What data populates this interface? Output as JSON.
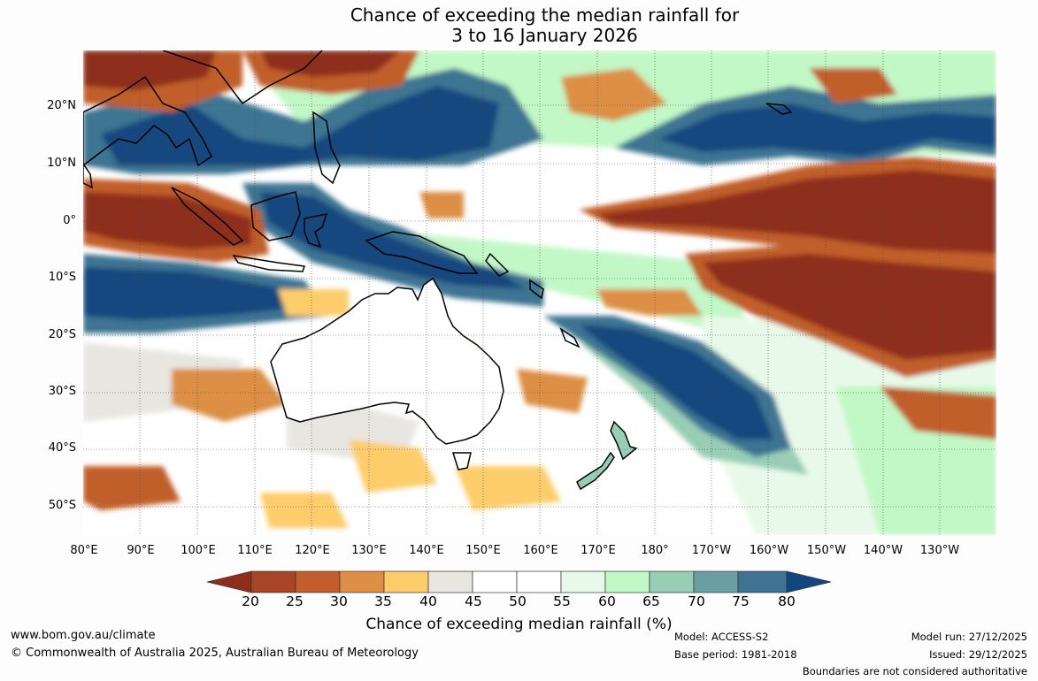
{
  "title": {
    "line1": "Chance of exceeding the median rainfall for",
    "line2": "3 to 16 January 2026"
  },
  "map": {
    "lat_labels": [
      "20°N",
      "10°N",
      "0°",
      "10°S",
      "20°S",
      "30°S",
      "40°S",
      "50°S"
    ],
    "lon_labels": [
      "80°E",
      "90°E",
      "100°E",
      "110°E",
      "120°E",
      "130°E",
      "140°E",
      "150°E",
      "160°E",
      "170°E",
      "180°",
      "170°W",
      "160°W",
      "150°W",
      "140°W",
      "130°W"
    ]
  },
  "colorbar": {
    "title": "Chance of exceeding median rainfall (%)",
    "labels": [
      "20",
      "25",
      "30",
      "35",
      "40",
      "45",
      "50",
      "55",
      "60",
      "65",
      "70",
      "75",
      "80"
    ],
    "colors": [
      "#8e2f1b",
      "#a84527",
      "#c15e2c",
      "#dc8f45",
      "#fccd6a",
      "#e8e6e1",
      "#ffffff",
      "#ffffff",
      "#e9f9e9",
      "#c2f8c6",
      "#98cdb6",
      "#6a9ea2",
      "#3e7492",
      "#12467e"
    ]
  },
  "footer": {
    "website": "www.bom.gov.au/climate",
    "copyright": "© Commonwealth of Australia 2025, Australian Bureau of Meteorology",
    "model": "Model: ACCESS-S2",
    "base_period": "Base period: 1981-2018",
    "model_run": "Model run: 27/12/2025",
    "issued": "Issued: 29/12/2025",
    "boundaries": "Boundaries are not considered authoritative"
  }
}
